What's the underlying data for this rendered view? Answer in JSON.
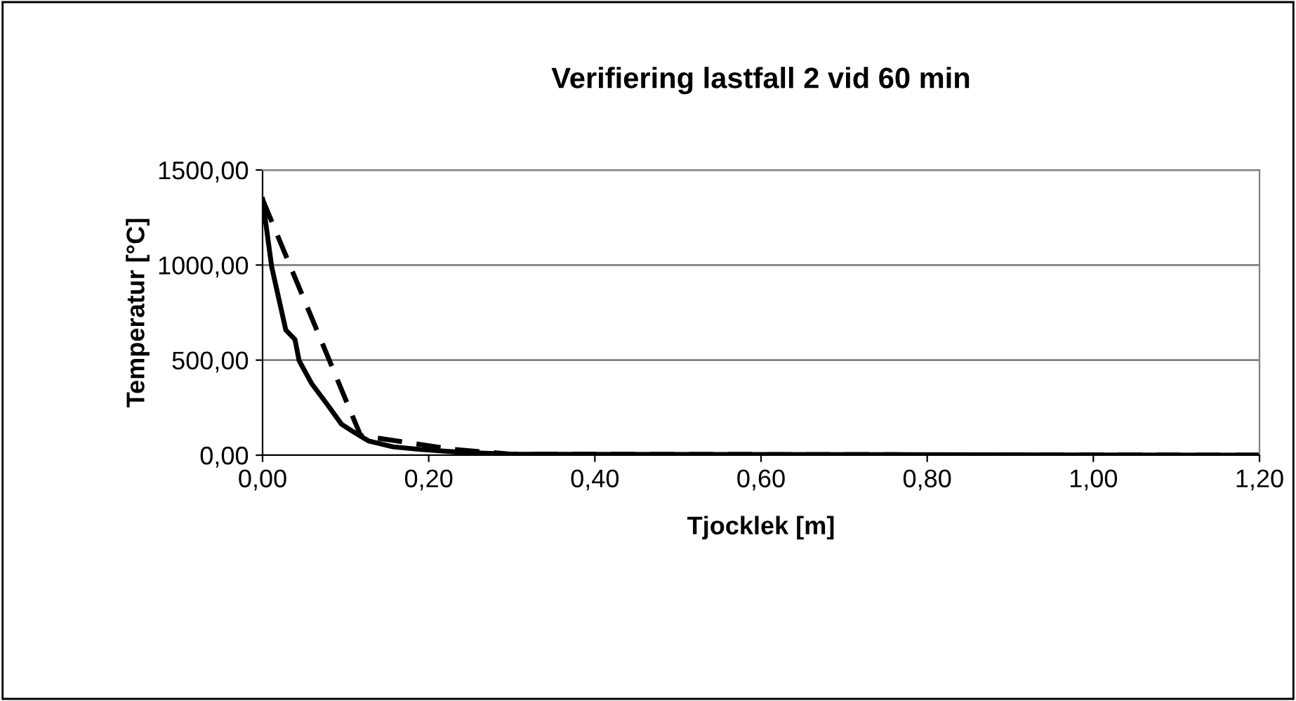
{
  "chart_data": {
    "type": "line",
    "title": "Verifiering lastfall 2 vid 60 min",
    "xlabel": "Tjocklek [m]",
    "ylabel": "Temperatur [°C]",
    "xlim": [
      0,
      1.2
    ],
    "ylim": [
      0,
      1500
    ],
    "xticks": [
      {
        "value": 0,
        "label": "0,00"
      },
      {
        "value": 0.2,
        "label": "0,20"
      },
      {
        "value": 0.4,
        "label": "0,40"
      },
      {
        "value": 0.6,
        "label": "0,60"
      },
      {
        "value": 0.8,
        "label": "0,80"
      },
      {
        "value": 1.0,
        "label": "1,00"
      },
      {
        "value": 1.2,
        "label": "1,20"
      }
    ],
    "yticks": [
      {
        "value": 0,
        "label": "0,00"
      },
      {
        "value": 500,
        "label": "500,00"
      },
      {
        "value": 1000,
        "label": "1000,00"
      },
      {
        "value": 1500,
        "label": "1500,00"
      }
    ],
    "grid": "y",
    "series": [
      {
        "color": "#000000",
        "line_style": "dashed",
        "x": [
          0,
          0.118,
          0.23,
          0.3,
          1.2
        ],
        "values": [
          1345,
          103,
          30,
          5,
          0
        ]
      },
      {
        "color": "#000000",
        "line_style": "solid",
        "x": [
          0,
          0.011,
          0.028,
          0.039,
          0.044,
          0.059,
          0.078,
          0.095,
          0.111,
          0.128,
          0.157,
          0.19,
          0.24,
          0.3,
          1.2
        ],
        "values": [
          1345,
          990,
          658,
          608,
          497,
          377,
          266,
          163,
          118,
          74,
          44,
          30,
          15,
          5,
          0
        ]
      }
    ]
  }
}
